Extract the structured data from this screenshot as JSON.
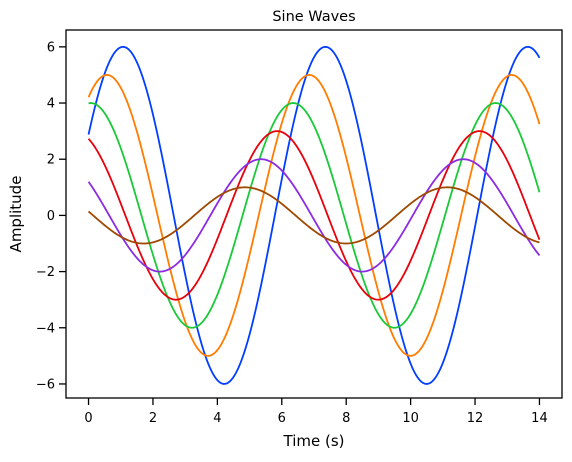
{
  "chart_data": {
    "type": "line",
    "title": "Sine Waves",
    "xlabel": "Time (s)",
    "ylabel": "Amplitude",
    "xlim": [
      -0.7,
      14.7
    ],
    "ylim": [
      -6.5,
      6.6
    ],
    "x_ticks": [
      0,
      2,
      4,
      6,
      8,
      10,
      12,
      14
    ],
    "x_tick_labels": [
      "0",
      "2",
      "4",
      "6",
      "8",
      "10",
      "12",
      "14"
    ],
    "y_ticks": [
      -6,
      -4,
      -2,
      0,
      2,
      4,
      6
    ],
    "y_tick_labels": [
      "−6",
      "−4",
      "−2",
      "0",
      "2",
      "4",
      "6"
    ],
    "grid": false,
    "legend": false,
    "function": "y = amplitude * sin(x + phase)",
    "x_range": [
      0,
      14
    ],
    "series": [
      {
        "amplitude": 6,
        "phase": 0.5,
        "color": "#023eff"
      },
      {
        "amplitude": 5,
        "phase": 1.0,
        "color": "#ff7c00"
      },
      {
        "amplitude": 4,
        "phase": 1.5,
        "color": "#1ac938"
      },
      {
        "amplitude": 3,
        "phase": 2.0,
        "color": "#e8000b"
      },
      {
        "amplitude": 2,
        "phase": 2.5,
        "color": "#8b2be2"
      },
      {
        "amplitude": 1,
        "phase": 3.0,
        "color": "#9f4800"
      }
    ]
  }
}
